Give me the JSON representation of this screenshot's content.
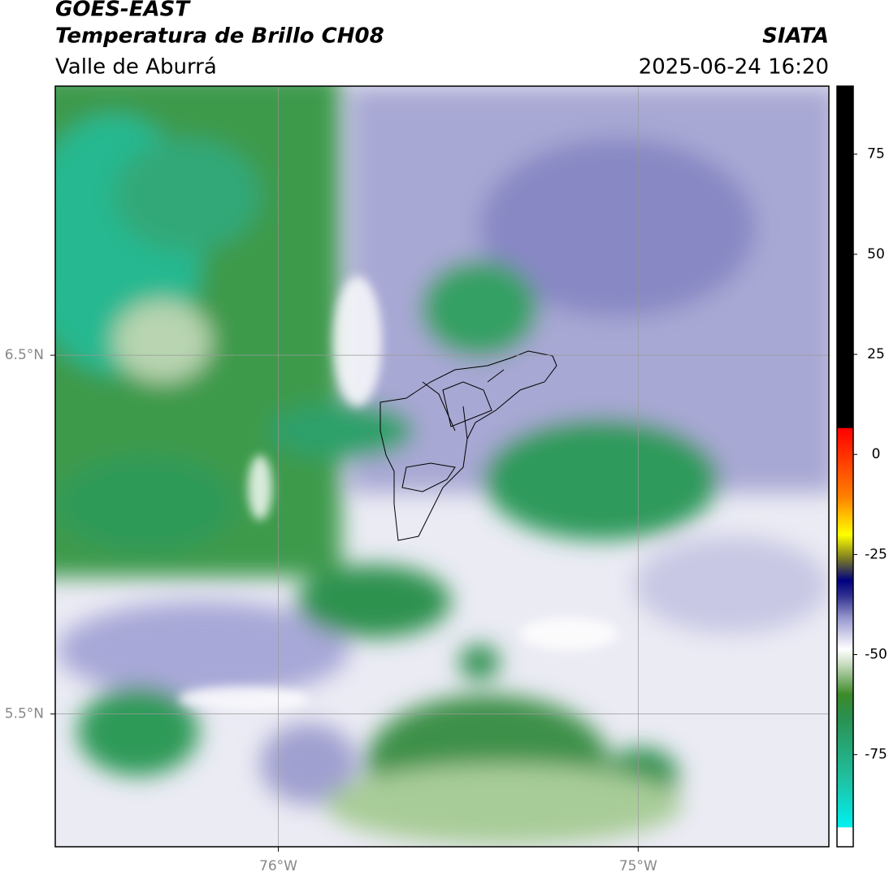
{
  "header": {
    "title": "GOES-EAST",
    "subtitle": "Temperatura de Brillo CH08",
    "region": "Valle de Aburrá",
    "source": "SIATA",
    "datetime": "2025-06-24 16:20"
  },
  "map": {
    "xlim": [
      -76.62,
      -74.47
    ],
    "ylim": [
      5.13,
      7.25
    ],
    "xticks": [
      {
        "value": -76,
        "label": "76°W"
      },
      {
        "value": -75,
        "label": "75°W"
      }
    ],
    "yticks": [
      {
        "value": 6.5,
        "label": "6.5°N"
      },
      {
        "value": 5.5,
        "label": "5.5°N"
      }
    ]
  },
  "colorbar": {
    "lim": [
      -98,
      92
    ],
    "ticks": [
      75,
      50,
      25,
      0,
      -25,
      -50,
      -75
    ]
  }
}
